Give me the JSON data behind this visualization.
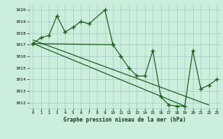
{
  "title": "Graphe pression niveau de la mer (hPa)",
  "bg_color": "#cceedd",
  "grid_color": "#aacccc",
  "line_color": "#1a5c1a",
  "xlim": [
    -0.5,
    23.5
  ],
  "ylim": [
    1011.5,
    1020.5
  ],
  "yticks": [
    1012,
    1013,
    1014,
    1015,
    1016,
    1017,
    1018,
    1019,
    1020
  ],
  "xticks": [
    0,
    1,
    2,
    3,
    4,
    5,
    6,
    7,
    8,
    9,
    10,
    11,
    12,
    13,
    14,
    15,
    16,
    17,
    18,
    19,
    20,
    21,
    22,
    23
  ],
  "series_upper": {
    "x": [
      0,
      1,
      2,
      3,
      4,
      5,
      6,
      7,
      9,
      10
    ],
    "y": [
      1017.1,
      1017.6,
      1017.8,
      1019.5,
      1018.1,
      1018.5,
      1019.0,
      1018.8,
      1020.0,
      1017.0
    ]
  },
  "series_main": {
    "x": [
      0,
      10,
      11,
      12,
      13,
      14,
      15,
      16,
      17,
      18,
      19,
      20,
      21,
      22,
      23
    ],
    "y": [
      1017.1,
      1017.0,
      1016.0,
      1015.0,
      1014.3,
      1014.3,
      1016.5,
      1012.5,
      1011.8,
      1011.7,
      1011.7,
      1016.5,
      1013.2,
      1013.5,
      1014.0
    ]
  },
  "series_trend1": {
    "x": [
      0,
      22
    ],
    "y": [
      1017.4,
      1011.8
    ]
  },
  "series_trend2": {
    "x": [
      0,
      19
    ],
    "y": [
      1017.1,
      1011.7
    ]
  }
}
